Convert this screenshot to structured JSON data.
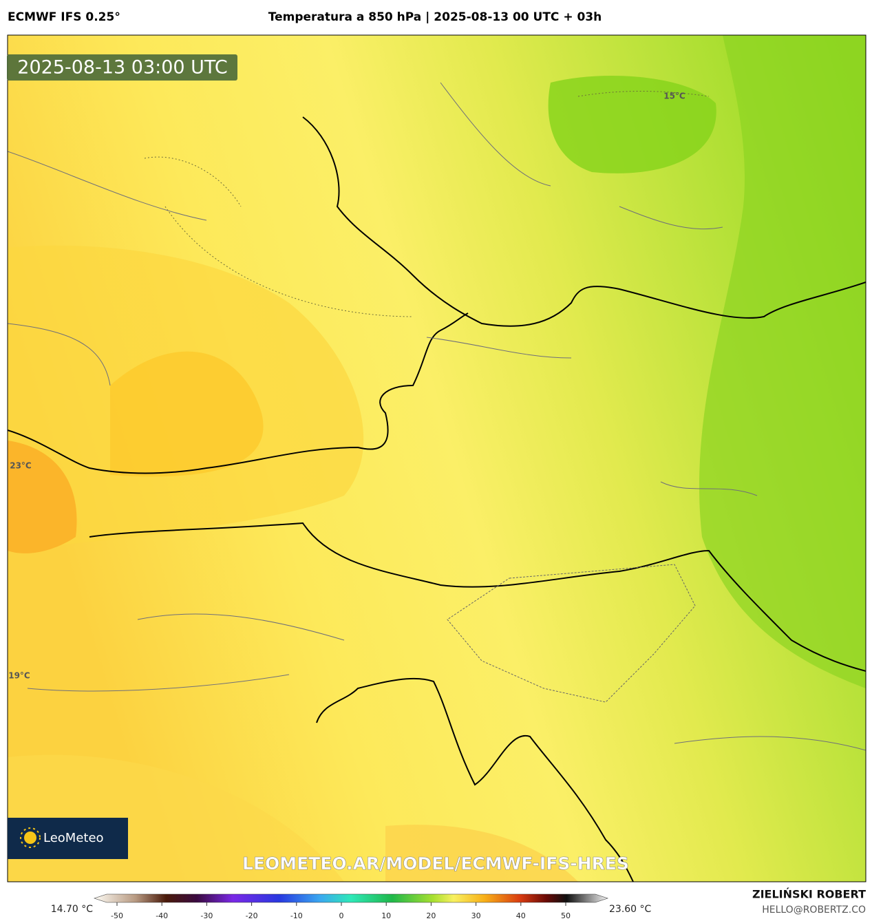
{
  "header": {
    "model": "ECMWF IFS 0.25°",
    "title": "Temperatura a 850 hPa | 2025-08-13 00 UTC + 03h"
  },
  "map": {
    "valid_time": "2025-08-13 03:00 UTC",
    "contour_labels": [
      "15°C",
      "23°C",
      "19°C"
    ],
    "watermark": "LEOMETEO.AR/MODEL/ECMWF-IFS-HRES",
    "logo": "LeoMeteo"
  },
  "colorbar": {
    "min_label": "14.70 °C",
    "max_label": "23.60 °C",
    "ticks": [
      -50,
      -40,
      -30,
      -20,
      -10,
      0,
      10,
      20,
      30,
      40,
      50
    ]
  },
  "footer": {
    "author": "ZIELIŃSKI ROBERT",
    "contact": "HELLO@ROBERTZ.CO"
  }
}
